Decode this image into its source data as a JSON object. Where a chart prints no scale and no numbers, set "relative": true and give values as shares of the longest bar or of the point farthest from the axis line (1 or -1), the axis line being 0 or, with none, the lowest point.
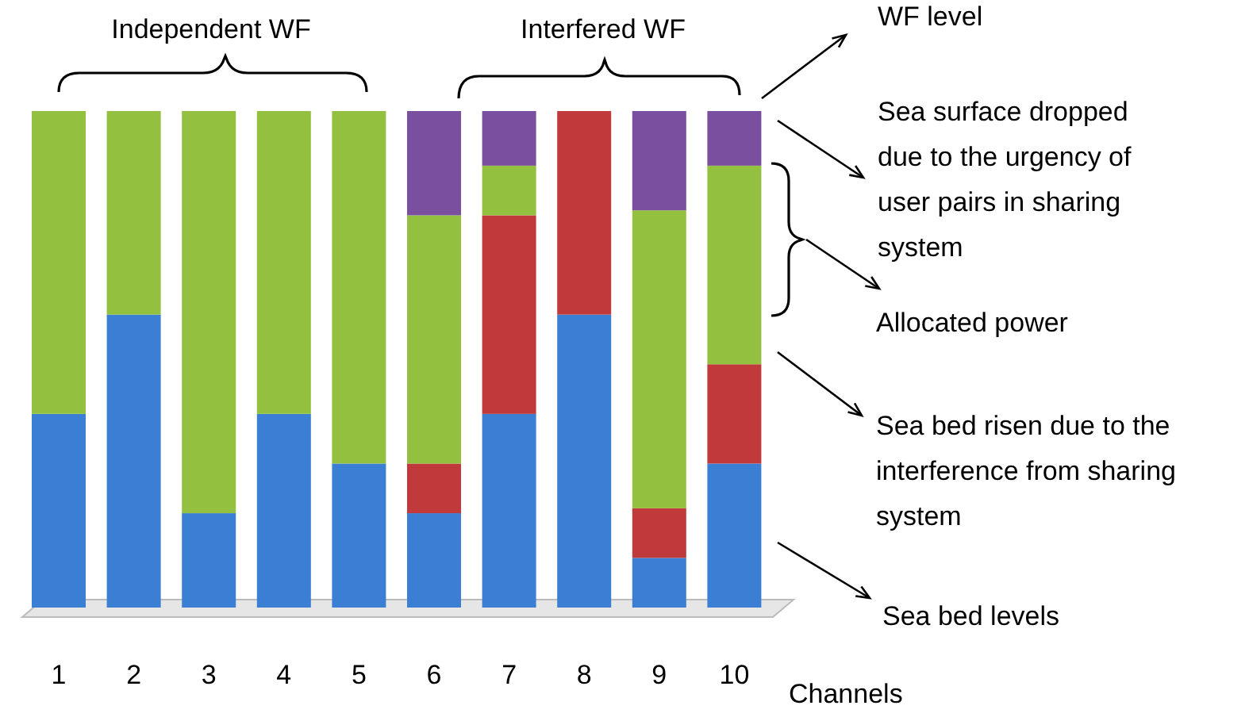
{
  "chart_data": {
    "type": "bar",
    "stacked": true,
    "relative": true,
    "xlabel": "Channels",
    "categories": [
      "1",
      "2",
      "3",
      "4",
      "5",
      "6",
      "7",
      "8",
      "9",
      "10"
    ],
    "series": [
      {
        "color": "#3b7fd4",
        "values": [
          0.39,
          0.59,
          0.19,
          0.39,
          0.29,
          0.19,
          0.39,
          0.59,
          0.1,
          0.29
        ]
      },
      {
        "color": "#c0393b",
        "values": [
          0,
          0,
          0,
          0,
          0,
          0.1,
          0.4,
          0.41,
          0.1,
          0.2
        ]
      },
      {
        "color": "#93c13f",
        "values": [
          0.61,
          0.41,
          0.81,
          0.61,
          0.71,
          0.5,
          0.1,
          0,
          0.6,
          0.4
        ]
      },
      {
        "color": "#7a4f9f",
        "values": [
          0,
          0,
          0,
          0,
          0,
          0.21,
          0.11,
          0,
          0.2,
          0.11
        ]
      }
    ],
    "annotations": [
      "Independent WF",
      "Interfered WF",
      "WF level",
      "Sea surface dropped due to the urgency of user pairs in sharing system",
      "Allocated power",
      "Sea bed risen due to the interference from sharing system",
      "Sea bed levels"
    ]
  }
}
